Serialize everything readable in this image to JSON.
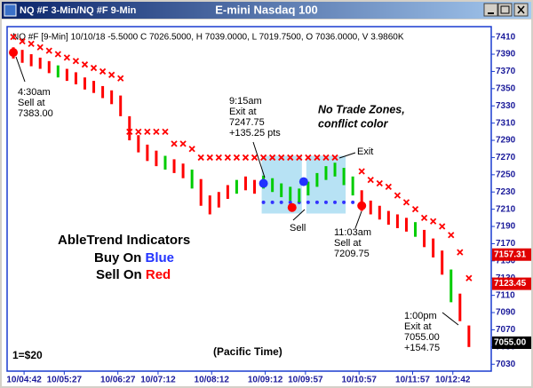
{
  "window": {
    "title": "NQ #F 3-Min/NQ #F 9-Min"
  },
  "chart_data": {
    "type": "ohlc",
    "title": "E-mini Nasdaq 100",
    "header": "NQ #F [9-Min] 10/10/18  -5.5000 C 7026.5000, H 7039.0000, L 7019.7500, O 7036.0000, V 3.9860K",
    "x": [
      270,
      280,
      290,
      300,
      310,
      320,
      330,
      340,
      350,
      360,
      370,
      380,
      390,
      400,
      410,
      420,
      430,
      440,
      450,
      460,
      470,
      480,
      490,
      500,
      510,
      520,
      530,
      540,
      550,
      560,
      570,
      580,
      590,
      600,
      610,
      620,
      630,
      640,
      650,
      660,
      670,
      680,
      690,
      700,
      710,
      720,
      730,
      740,
      750,
      760,
      770,
      780
    ],
    "high": [
      7398,
      7395,
      7390,
      7386,
      7382,
      7377,
      7373,
      7369,
      7363,
      7359,
      7353,
      7348,
      7342,
      7318,
      7296,
      7285,
      7278,
      7272,
      7268,
      7263,
      7256,
      7245,
      7226,
      7230,
      7238,
      7244,
      7248,
      7244,
      7249,
      7246,
      7240,
      7236,
      7234,
      7242,
      7252,
      7260,
      7264,
      7258,
      7248,
      7232,
      7220,
      7214,
      7208,
      7204,
      7200,
      7195,
      7186,
      7176,
      7162,
      7140,
      7112,
      7075
    ],
    "low": [
      7385,
      7380,
      7376,
      7373,
      7368,
      7363,
      7359,
      7355,
      7349,
      7345,
      7339,
      7332,
      7318,
      7290,
      7276,
      7266,
      7260,
      7256,
      7252,
      7246,
      7234,
      7214,
      7204,
      7212,
      7222,
      7228,
      7232,
      7228,
      7234,
      7230,
      7224,
      7220,
      7218,
      7226,
      7236,
      7244,
      7248,
      7238,
      7226,
      7208,
      7204,
      7198,
      7192,
      7188,
      7184,
      7178,
      7166,
      7154,
      7134,
      7102,
      7080,
      7050
    ],
    "bar_colors": [
      "#ff0000",
      "#ff0000",
      "#ff0000",
      "#ff0000",
      "#ff0000",
      "#00cc00",
      "#ff0000",
      "#ff0000",
      "#ff0000",
      "#ff0000",
      "#ff0000",
      "#ff0000",
      "#ff0000",
      "#ff0000",
      "#ff0000",
      "#ff0000",
      "#ff0000",
      "#00cc00",
      "#ff0000",
      "#ff0000",
      "#00cc00",
      "#ff0000",
      "#ff0000",
      "#ff0000",
      "#ff0000",
      "#00cc00",
      "#ff0000",
      "#ff0000",
      "#00cc00",
      "#00cc00",
      "#00cc00",
      "#00cc00",
      "#00cc00",
      "#00cc00",
      "#00cc00",
      "#00cc00",
      "#00cc00",
      "#00cc00",
      "#00cc00",
      "#ff0000",
      "#ff0000",
      "#ff0000",
      "#ff0000",
      "#ff0000",
      "#ff0000",
      "#00cc00",
      "#ff0000",
      "#ff0000",
      "#ff0000",
      "#00cc00",
      "#ff0000",
      "#ff0000"
    ],
    "sell_stop": {
      "color": "#ff0000",
      "values": [
        7410,
        7405,
        7402,
        7398,
        7394,
        7390,
        7386,
        7382,
        7378,
        7374,
        7370,
        7366,
        7362,
        7300,
        7300,
        7300,
        7300,
        7300,
        7286,
        7286,
        7280,
        7270,
        7270,
        7270,
        7270,
        7270,
        7270,
        7270,
        7270,
        7270,
        7270,
        7270,
        7270,
        7270,
        7270,
        7270,
        7270,
        null,
        null,
        7254,
        7244,
        7240,
        7236,
        7226,
        7218,
        7210,
        7200,
        7196,
        7190,
        7180,
        7160,
        7130
      ]
    },
    "buy_stop": {
      "color": "#3333ff",
      "values": [
        null,
        null,
        null,
        null,
        null,
        null,
        null,
        null,
        null,
        null,
        null,
        null,
        null,
        null,
        null,
        null,
        null,
        null,
        null,
        null,
        null,
        null,
        null,
        null,
        null,
        null,
        null,
        null,
        7218,
        7218,
        7218,
        7218,
        7218,
        7218,
        7218,
        7218,
        7218,
        7218,
        7218,
        null,
        null,
        null,
        null,
        null,
        null,
        null,
        null,
        null,
        null,
        null,
        null,
        null
      ]
    },
    "signals": {
      "x": [
        270,
        550,
        582,
        595,
        660
      ],
      "y": [
        7392,
        7240,
        7212,
        7242,
        7214
      ],
      "colors": [
        "#ff0000",
        "#2233ff",
        "#ff0000",
        "#2233ff",
        "#ff0000"
      ]
    },
    "zones": [
      {
        "x": [
          548,
          593
        ],
        "y": [
          7205,
          7272
        ]
      },
      {
        "x": [
          598,
          642
        ],
        "y": [
          7205,
          7272
        ]
      }
    ],
    "zone_color": "#9fd8f0",
    "xlim": [
      263,
      805
    ],
    "ylim": [
      7022,
      7422
    ],
    "yticks": [
      7030,
      7050,
      7070,
      7090,
      7110,
      7130,
      7150,
      7170,
      7190,
      7210,
      7230,
      7250,
      7270,
      7290,
      7310,
      7330,
      7350,
      7370,
      7390,
      7410
    ],
    "xticks": [
      {
        "value": 282,
        "label": "10/04:42"
      },
      {
        "value": 327,
        "label": "10/05:27"
      },
      {
        "value": 387,
        "label": "10/06:27"
      },
      {
        "value": 432,
        "label": "10/07:12"
      },
      {
        "value": 492,
        "label": "10/08:12"
      },
      {
        "value": 552,
        "label": "10/09:12"
      },
      {
        "value": 597,
        "label": "10/09:57"
      },
      {
        "value": 657,
        "label": "10/10:57"
      },
      {
        "value": 717,
        "label": "10/11:57"
      },
      {
        "value": 762,
        "label": "10/12:42"
      }
    ],
    "price_tags": [
      {
        "value": 7157.31,
        "color": "#e00000"
      },
      {
        "value": 7123.45,
        "color": "#e00000"
      },
      {
        "value": 7055,
        "label": "7055.00",
        "color": "#000000"
      }
    ],
    "annotations": [
      {
        "lines": [
          "4:30am",
          "Sell at",
          "7383.00"
        ]
      },
      {
        "lines": [
          "9:15am",
          "Exit at",
          "7247.75",
          "+135.25 pts"
        ]
      },
      {
        "lines": [
          "No Trade Zones,",
          "conflict color"
        ]
      },
      {
        "lines": [
          "Exit"
        ]
      },
      {
        "lines": [
          "Sell"
        ]
      },
      {
        "lines": [
          "11:03am",
          "Sell at",
          "7209.75"
        ]
      },
      {
        "lines": [
          "1:00pm",
          "Exit at",
          "7055.00",
          "+154.75"
        ]
      },
      {
        "lines": [
          "(Pacific Time)"
        ]
      },
      {
        "lines": [
          "1=$20"
        ]
      }
    ],
    "legend": {
      "title": "AbleTrend Indicators",
      "buy": [
        "Buy On ",
        "Blue"
      ],
      "sell": [
        "Sell On ",
        "Red"
      ]
    }
  }
}
